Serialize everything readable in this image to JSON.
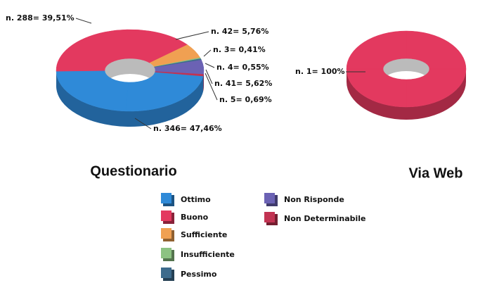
{
  "chart_data": [
    {
      "type": "pie",
      "title": "Questionario",
      "categories": [
        "Ottimo",
        "Buono",
        "Sufficiente",
        "Insufficiente",
        "Pessimo",
        "Non Risponde",
        "Non Determinabile"
      ],
      "values": [
        346,
        288,
        42,
        3,
        4,
        41,
        5
      ],
      "value_labels": [
        "n. 346= 47,46%",
        "n. 288= 39,51%",
        "n. 42= 5,76%",
        "n. 3= 0,41%",
        "n. 4= 0,55%",
        "n. 41= 5,62%",
        "n. 5= 0,69%"
      ],
      "colors": [
        "#2f8ad8",
        "#e3395f",
        "#f0a052",
        "#8cc282",
        "#3d6b8c",
        "#6b62b4",
        "#c23352"
      ]
    },
    {
      "type": "pie",
      "title": "Via Web",
      "categories": [
        "Buono"
      ],
      "values": [
        1
      ],
      "value_labels": [
        "n. 1= 100%"
      ],
      "colors": [
        "#e3395f"
      ]
    }
  ]
}
